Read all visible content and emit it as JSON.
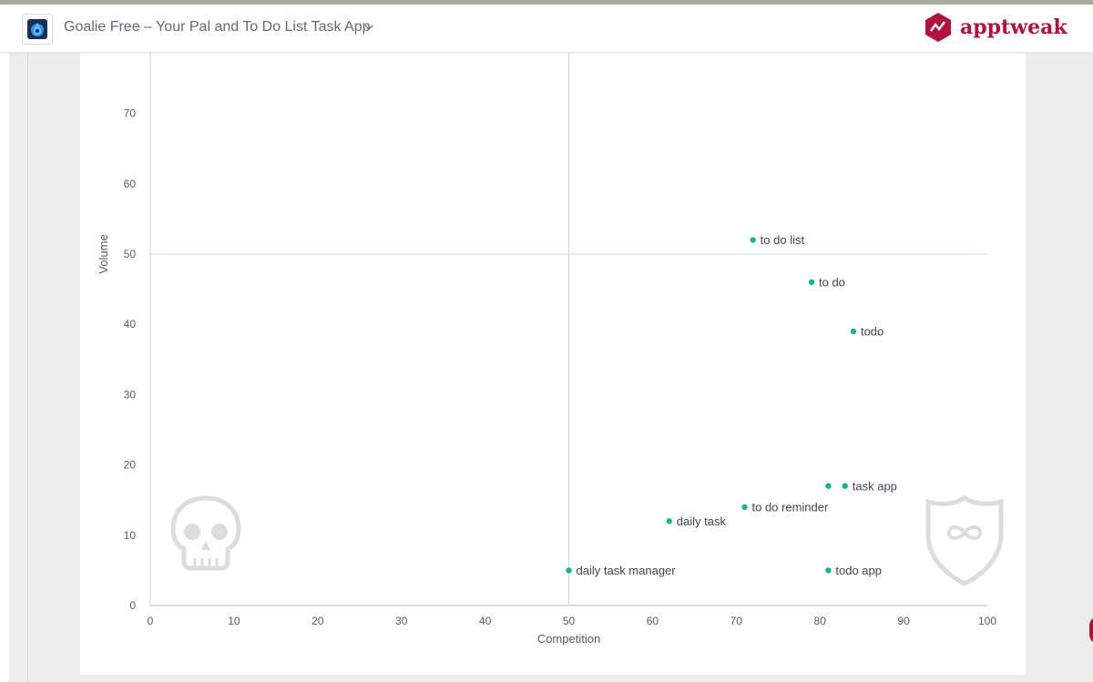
{
  "header": {
    "app_title": "Goalie Free – Your Pal and To Do List Task App",
    "brand": "apptweak",
    "brand_color": "#b3103c"
  },
  "chart_data": {
    "type": "scatter",
    "title": "",
    "xlabel": "Competition",
    "ylabel": "Volume",
    "xlim": [
      0,
      100
    ],
    "ylim": [
      0,
      80
    ],
    "x_ticks": [
      0,
      10,
      20,
      30,
      40,
      50,
      60,
      70,
      80,
      90,
      100
    ],
    "y_ticks": [
      0,
      10,
      20,
      30,
      40,
      50,
      60,
      70
    ],
    "quadrant_lines": {
      "x": 50,
      "y": 50
    },
    "point_color": "#12b886",
    "points": [
      {
        "label": "to do list",
        "x": 72,
        "y": 52
      },
      {
        "label": "to do",
        "x": 79,
        "y": 46
      },
      {
        "label": "todo",
        "x": 84,
        "y": 39
      },
      {
        "label": "",
        "x": 81,
        "y": 17
      },
      {
        "label": "task app",
        "x": 83,
        "y": 17
      },
      {
        "label": "to do reminder",
        "x": 71,
        "y": 14
      },
      {
        "label": "daily task",
        "x": 62,
        "y": 12
      },
      {
        "label": "daily task manager",
        "x": 50,
        "y": 5
      },
      {
        "label": "todo app",
        "x": 81,
        "y": 5
      }
    ],
    "icons": [
      "skull-icon",
      "shield-infinity-icon"
    ]
  }
}
